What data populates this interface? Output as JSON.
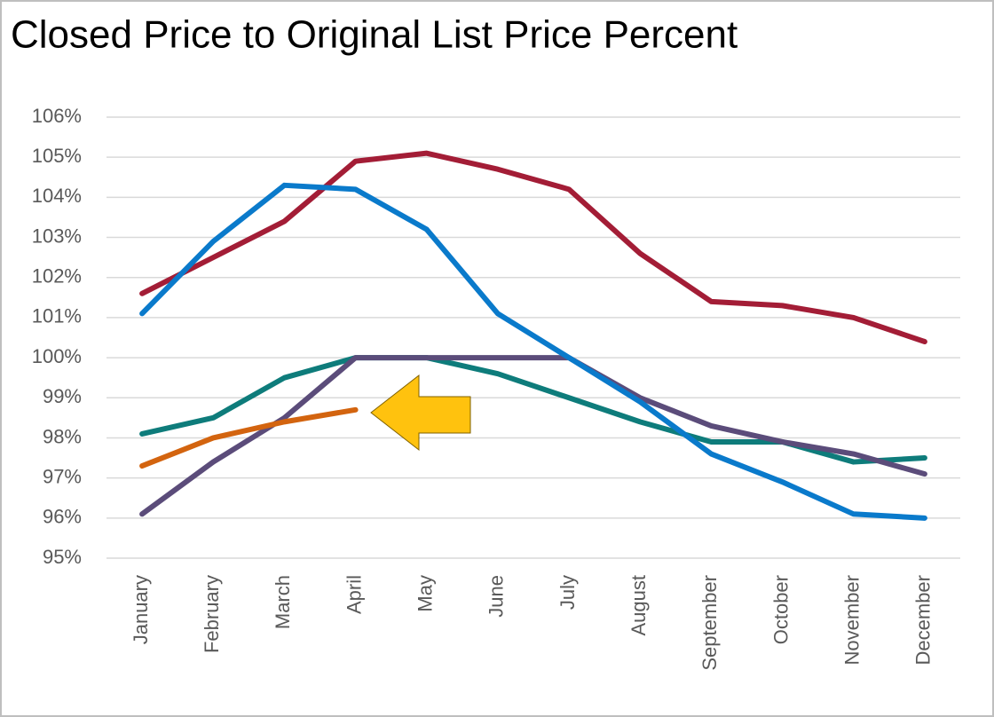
{
  "chart_data": {
    "type": "line",
    "title": "Closed Price to Original List Price Percent",
    "categories": [
      "January",
      "February",
      "March",
      "April",
      "May",
      "June",
      "July",
      "August",
      "September",
      "October",
      "November",
      "December"
    ],
    "series": [
      {
        "color": "#a31d36",
        "values": [
          101.6,
          102.5,
          103.4,
          104.9,
          105.1,
          104.7,
          104.2,
          102.6,
          101.4,
          101.3,
          101.0,
          100.4
        ]
      },
      {
        "color": "#0e7c7b",
        "values": [
          98.1,
          98.5,
          99.5,
          100.0,
          100.0,
          99.6,
          99.0,
          98.4,
          97.9,
          97.9,
          97.4,
          97.5
        ]
      },
      {
        "color": "#5b4c7a",
        "values": [
          96.1,
          97.4,
          98.5,
          100.0,
          100.0,
          100.0,
          100.0,
          99.0,
          98.3,
          97.9,
          97.6,
          97.1
        ]
      },
      {
        "color": "#0a7acb",
        "values": [
          101.1,
          102.9,
          104.3,
          104.2,
          103.2,
          101.1,
          100.0,
          98.9,
          97.6,
          96.9,
          96.1,
          96.0
        ]
      },
      {
        "color": "#d3640f",
        "values": [
          97.3,
          98.0,
          98.4,
          98.7,
          null,
          null,
          null,
          null,
          null,
          null,
          null,
          null
        ]
      }
    ],
    "ylim": [
      95,
      106
    ],
    "yticks": [
      {
        "value": 95,
        "label": "95%"
      },
      {
        "value": 96,
        "label": "96%"
      },
      {
        "value": 97,
        "label": "97%"
      },
      {
        "value": 98,
        "label": "98%"
      },
      {
        "value": 99,
        "label": "99%"
      },
      {
        "value": 100,
        "label": "100%"
      },
      {
        "value": 101,
        "label": "101%"
      },
      {
        "value": 102,
        "label": "102%"
      },
      {
        "value": 103,
        "label": "103%"
      },
      {
        "value": 104,
        "label": "104%"
      },
      {
        "value": 105,
        "label": "105%"
      },
      {
        "value": 106,
        "label": "106%"
      }
    ],
    "grid": true
  }
}
